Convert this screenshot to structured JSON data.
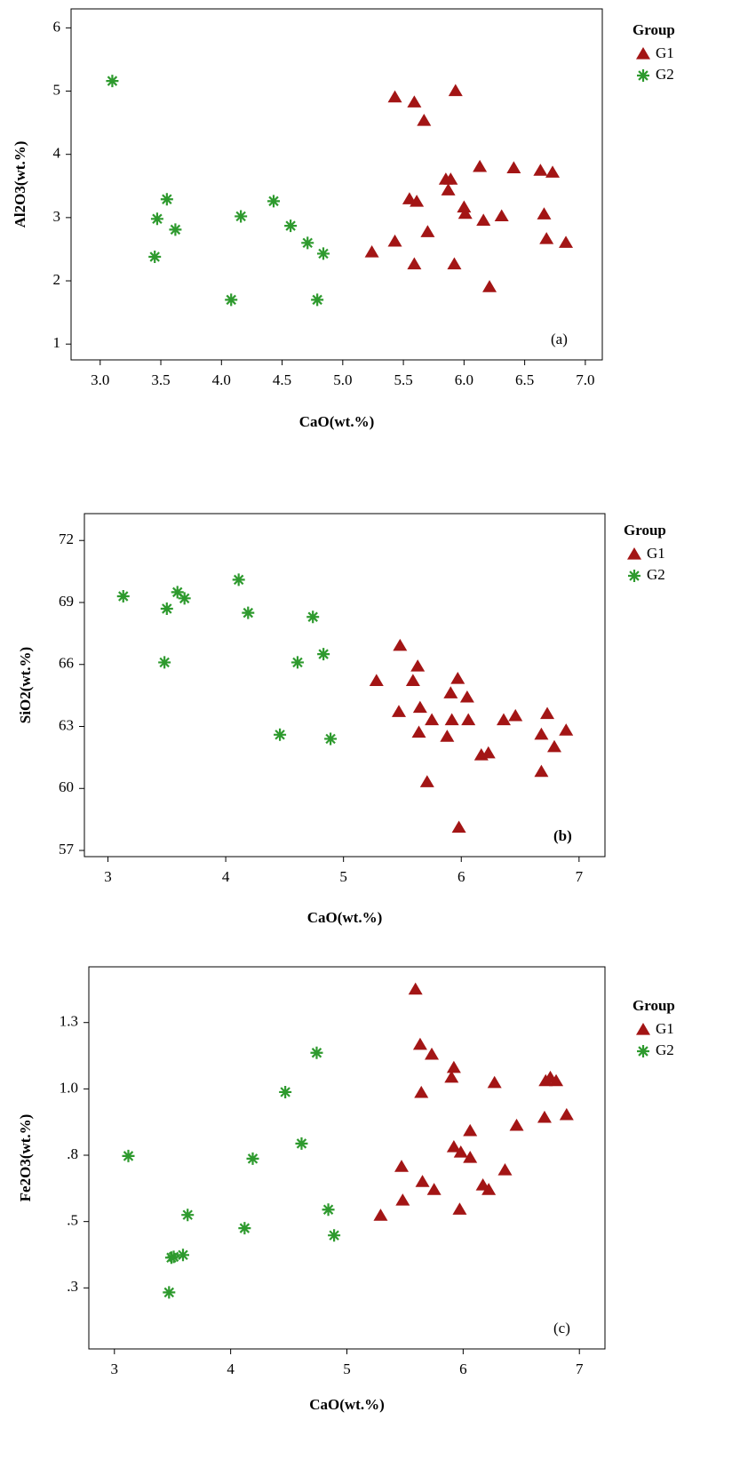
{
  "chart_data": [
    {
      "type": "scatter",
      "x_label": "CaO(wt.%)",
      "y_label": "Al2O3(wt.%)",
      "annotation": "(a)",
      "legend_title": "Group",
      "xlim": [
        2.76,
        7.14
      ],
      "ylim": [
        0.75,
        6.3
      ],
      "xticks": [
        {
          "value": 3,
          "label": "3.0"
        },
        3.5,
        {
          "value": 4,
          "label": "4.0"
        },
        4.5,
        {
          "value": 5,
          "label": "5.0"
        },
        5.5,
        {
          "value": 6,
          "label": "6.0"
        },
        6.5,
        {
          "value": 7,
          "label": "7.0"
        }
      ],
      "yticks": [
        1,
        2,
        3,
        4,
        5,
        6
      ],
      "series": [
        {
          "name": "G1",
          "color": "#a31515",
          "marker": "triangle",
          "x": [
            5.24,
            5.43,
            5.43,
            5.59,
            5.67,
            5.93,
            5.55,
            5.61,
            5.59,
            5.7,
            5.85,
            5.89,
            5.87,
            5.92,
            6.0,
            6.01,
            6.16,
            6.13,
            6.21,
            6.31,
            6.41,
            6.63,
            6.66,
            6.73,
            6.68,
            6.84
          ],
          "values": [
            2.45,
            2.62,
            4.9,
            4.82,
            4.53,
            5.0,
            3.29,
            3.25,
            2.26,
            2.77,
            3.6,
            3.6,
            3.43,
            2.26,
            3.16,
            3.06,
            2.95,
            3.8,
            1.9,
            3.02,
            3.78,
            3.74,
            3.05,
            3.71,
            2.66,
            2.6
          ]
        },
        {
          "name": "G2",
          "color": "#2e9a2e",
          "marker": "star",
          "x": [
            3.1,
            3.47,
            3.55,
            3.62,
            3.45,
            4.16,
            4.08,
            4.43,
            4.57,
            4.71,
            4.84,
            4.79
          ],
          "values": [
            5.16,
            2.98,
            3.29,
            2.81,
            2.38,
            3.02,
            1.7,
            3.26,
            2.87,
            2.6,
            2.43,
            1.7
          ]
        }
      ]
    },
    {
      "type": "scatter",
      "x_label": "CaO(wt.%)",
      "y_label": "SiO2(wt.%)",
      "annotation": "(b)",
      "legend_title": "Group",
      "xlim": [
        2.8,
        7.22
      ],
      "ylim": [
        56.7,
        73.3
      ],
      "xticks": [
        3,
        4,
        5,
        6,
        7
      ],
      "yticks": [
        57,
        60,
        63,
        66,
        69,
        72
      ],
      "series": [
        {
          "name": "G1",
          "color": "#a31515",
          "marker": "triangle",
          "x": [
            5.28,
            5.48,
            5.47,
            5.59,
            5.63,
            5.64,
            5.65,
            5.75,
            5.71,
            5.91,
            5.92,
            5.97,
            5.88,
            6.05,
            6.06,
            5.98,
            6.17,
            6.23,
            6.36,
            6.46,
            6.68,
            6.73,
            6.79,
            6.89,
            6.68
          ],
          "values": [
            65.2,
            66.9,
            63.7,
            65.2,
            65.9,
            62.7,
            63.9,
            63.3,
            60.3,
            64.6,
            63.3,
            65.3,
            62.5,
            64.4,
            63.3,
            58.1,
            61.6,
            61.7,
            63.3,
            63.5,
            62.6,
            63.6,
            62.0,
            62.8,
            60.8
          ]
        },
        {
          "name": "G2",
          "color": "#2e9a2e",
          "marker": "star",
          "x": [
            3.13,
            3.5,
            3.48,
            3.59,
            3.65,
            4.11,
            4.19,
            4.46,
            4.61,
            4.74,
            4.83,
            4.89
          ],
          "values": [
            69.3,
            68.7,
            66.1,
            69.5,
            69.2,
            70.1,
            68.5,
            62.6,
            66.1,
            68.3,
            66.5,
            62.4
          ]
        }
      ]
    },
    {
      "type": "scatter",
      "x_label": "CaO(wt.%)",
      "y_label": "Fe2O3(wt.%)",
      "annotation": "(c)",
      "legend_title": "Group",
      "xlim": [
        2.78,
        7.22
      ],
      "ylim": [
        0.02,
        1.46
      ],
      "xticks": [
        3,
        4,
        5,
        6,
        7
      ],
      "yticks": [
        {
          "value": 0.25,
          "label": ".3"
        },
        {
          "value": 0.5,
          "label": ".5"
        },
        {
          "value": 0.75,
          "label": ".8"
        },
        {
          "value": 1.0,
          "label": "1.0"
        },
        {
          "value": 1.25,
          "label": "1.3"
        }
      ],
      "series": [
        {
          "name": "G1",
          "color": "#a31515",
          "marker": "triangle",
          "x": [
            5.29,
            5.47,
            5.48,
            5.59,
            5.63,
            5.64,
            5.65,
            5.73,
            5.75,
            5.9,
            5.92,
            5.92,
            5.98,
            5.97,
            6.06,
            6.06,
            6.17,
            6.22,
            6.27,
            6.36,
            6.46,
            6.7,
            6.71,
            6.75,
            6.8,
            6.89
          ],
          "values": [
            0.522,
            0.706,
            0.579,
            1.374,
            1.166,
            0.985,
            0.649,
            1.129,
            0.619,
            1.042,
            1.079,
            0.78,
            0.76,
            0.545,
            0.841,
            0.74,
            0.636,
            0.619,
            1.022,
            0.693,
            0.861,
            0.891,
            1.029,
            1.042,
            1.029,
            0.901
          ]
        },
        {
          "name": "G2",
          "color": "#2e9a2e",
          "marker": "star",
          "x": [
            3.12,
            3.47,
            3.49,
            3.51,
            3.59,
            3.63,
            4.12,
            4.19,
            4.47,
            4.61,
            4.74,
            4.84,
            4.89
          ],
          "values": [
            0.747,
            0.233,
            0.364,
            0.367,
            0.374,
            0.525,
            0.475,
            0.737,
            0.988,
            0.794,
            1.136,
            0.545,
            0.448
          ]
        }
      ]
    }
  ]
}
